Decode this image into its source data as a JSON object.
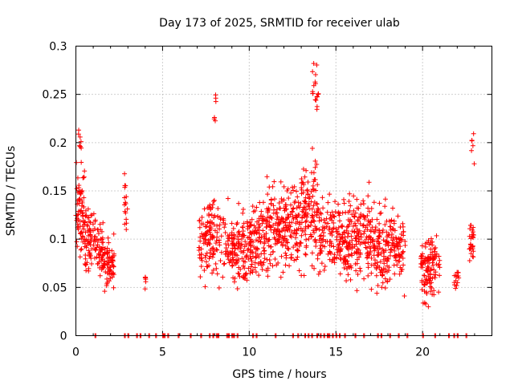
{
  "chart_data": {
    "type": "scatter",
    "title": "Day 173 of 2025, SRMTID for receiver ulab",
    "xlabel": "GPS time / hours",
    "ylabel": "SRMTID / TECUs",
    "xlim": [
      0,
      24
    ],
    "ylim": [
      0,
      0.3
    ],
    "xticks": [
      0,
      5,
      10,
      15,
      20
    ],
    "xtick_labels": [
      "0",
      "5",
      "10",
      "15",
      "20"
    ],
    "yticks": [
      0,
      0.05,
      0.1,
      0.15,
      0.2,
      0.25,
      0.3
    ],
    "ytick_labels": [
      "0",
      "0.05",
      "0.1",
      "0.15",
      "0.2",
      "0.25",
      "0.3"
    ],
    "grid": true,
    "marker": "+",
    "color": "#ff0000",
    "series": [
      {
        "name": "SRMTID",
        "clusters": [
          {
            "t0": 0.0,
            "t1": 0.5,
            "n": 70,
            "center": 0.125,
            "spread": 0.035
          },
          {
            "t0": 0.15,
            "t1": 0.35,
            "n": 8,
            "center": 0.2,
            "spread": 0.015
          },
          {
            "t0": 0.5,
            "t1": 1.0,
            "n": 60,
            "center": 0.1,
            "spread": 0.03
          },
          {
            "t0": 1.0,
            "t1": 1.6,
            "n": 60,
            "center": 0.09,
            "spread": 0.025
          },
          {
            "t0": 1.6,
            "t1": 2.2,
            "n": 70,
            "center": 0.075,
            "spread": 0.02
          },
          {
            "t0": 2.8,
            "t1": 3.0,
            "n": 16,
            "center": 0.14,
            "spread": 0.035
          },
          {
            "t0": 3.9,
            "t1": 4.1,
            "n": 6,
            "center": 0.057,
            "spread": 0.008
          },
          {
            "t0": 7.1,
            "t1": 7.6,
            "n": 50,
            "center": 0.095,
            "spread": 0.03
          },
          {
            "t0": 7.6,
            "t1": 8.3,
            "n": 70,
            "center": 0.1,
            "spread": 0.035
          },
          {
            "t0": 7.9,
            "t1": 8.1,
            "n": 6,
            "center": 0.235,
            "spread": 0.02
          },
          {
            "t0": 8.3,
            "t1": 9.0,
            "n": 40,
            "center": 0.095,
            "spread": 0.03
          },
          {
            "t0": 9.0,
            "t1": 10.0,
            "n": 110,
            "center": 0.09,
            "spread": 0.03
          },
          {
            "t0": 10.0,
            "t1": 11.0,
            "n": 110,
            "center": 0.1,
            "spread": 0.03
          },
          {
            "t0": 11.0,
            "t1": 12.0,
            "n": 110,
            "center": 0.11,
            "spread": 0.035
          },
          {
            "t0": 12.0,
            "t1": 13.0,
            "n": 110,
            "center": 0.115,
            "spread": 0.035
          },
          {
            "t0": 13.0,
            "t1": 14.0,
            "n": 120,
            "center": 0.13,
            "spread": 0.04
          },
          {
            "t0": 13.6,
            "t1": 14.0,
            "n": 18,
            "center": 0.255,
            "spread": 0.02
          },
          {
            "t0": 14.0,
            "t1": 15.0,
            "n": 80,
            "center": 0.11,
            "spread": 0.035
          },
          {
            "t0": 15.0,
            "t1": 16.0,
            "n": 110,
            "center": 0.1,
            "spread": 0.03
          },
          {
            "t0": 16.0,
            "t1": 17.0,
            "n": 110,
            "center": 0.1,
            "spread": 0.035
          },
          {
            "t0": 17.0,
            "t1": 18.0,
            "n": 110,
            "center": 0.09,
            "spread": 0.035
          },
          {
            "t0": 18.0,
            "t1": 19.0,
            "n": 90,
            "center": 0.09,
            "spread": 0.03
          },
          {
            "t0": 19.9,
            "t1": 20.5,
            "n": 80,
            "center": 0.07,
            "spread": 0.03
          },
          {
            "t0": 20.5,
            "t1": 21.0,
            "n": 40,
            "center": 0.07,
            "spread": 0.025
          },
          {
            "t0": 21.8,
            "t1": 22.1,
            "n": 14,
            "center": 0.06,
            "spread": 0.01
          },
          {
            "t0": 22.7,
            "t1": 23.0,
            "n": 30,
            "center": 0.1,
            "spread": 0.02
          },
          {
            "t0": 22.8,
            "t1": 23.0,
            "n": 6,
            "center": 0.2,
            "spread": 0.02
          }
        ],
        "zero_hours": [
          1.1,
          2.8,
          3.0,
          3.5,
          3.7,
          4.2,
          4.6,
          5.0,
          5.1,
          5.3,
          5.9,
          6.6,
          7.2,
          7.7,
          7.9,
          8.1,
          8.2,
          8.7,
          8.8,
          9.0,
          9.1,
          9.3,
          10.2,
          10.4,
          11.5,
          12.5,
          12.8,
          13.2,
          13.4,
          13.6,
          13.9,
          14.1,
          14.3,
          14.5,
          14.6,
          14.8,
          15.0,
          15.2,
          15.5,
          16.1,
          16.6,
          17.4,
          17.6,
          18.1,
          18.6,
          19.1,
          20.0,
          20.7,
          21.5,
          21.8,
          22.0,
          22.5
        ]
      }
    ]
  }
}
